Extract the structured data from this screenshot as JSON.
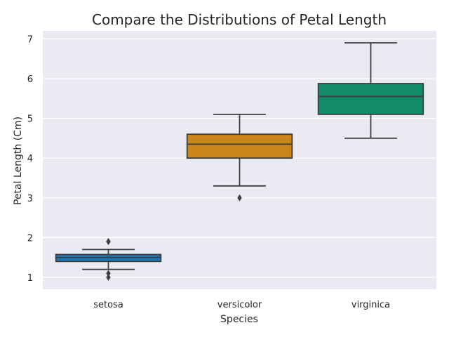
{
  "chart_data": {
    "type": "box",
    "title": "Compare the Distributions of Petal Length",
    "xlabel": "Species",
    "ylabel": "Petal Length (Cm)",
    "ylim": [
      0.7,
      7.2
    ],
    "yticks": [
      1,
      2,
      3,
      4,
      5,
      6,
      7
    ],
    "grid": true,
    "categories": [
      "setosa",
      "versicolor",
      "virginica"
    ],
    "boxes": [
      {
        "category": "setosa",
        "whisker_low": 1.2,
        "q1": 1.4,
        "median": 1.5,
        "q3": 1.575,
        "whisker_high": 1.7,
        "outliers": [
          1.0,
          1.1,
          1.9,
          1.9
        ],
        "color": "#1f77b4"
      },
      {
        "category": "versicolor",
        "whisker_low": 3.3,
        "q1": 4.0,
        "median": 4.35,
        "q3": 4.6,
        "whisker_high": 5.1,
        "outliers": [
          3.0
        ],
        "color": "#c9871a"
      },
      {
        "category": "virginica",
        "whisker_low": 4.5,
        "q1": 5.1,
        "median": 5.55,
        "q3": 5.875,
        "whisker_high": 6.9,
        "outliers": [],
        "color": "#138c67"
      }
    ],
    "colors": {
      "background": "#eaeaf2",
      "grid": "#ffffff",
      "line": "#3d3d3d"
    }
  }
}
